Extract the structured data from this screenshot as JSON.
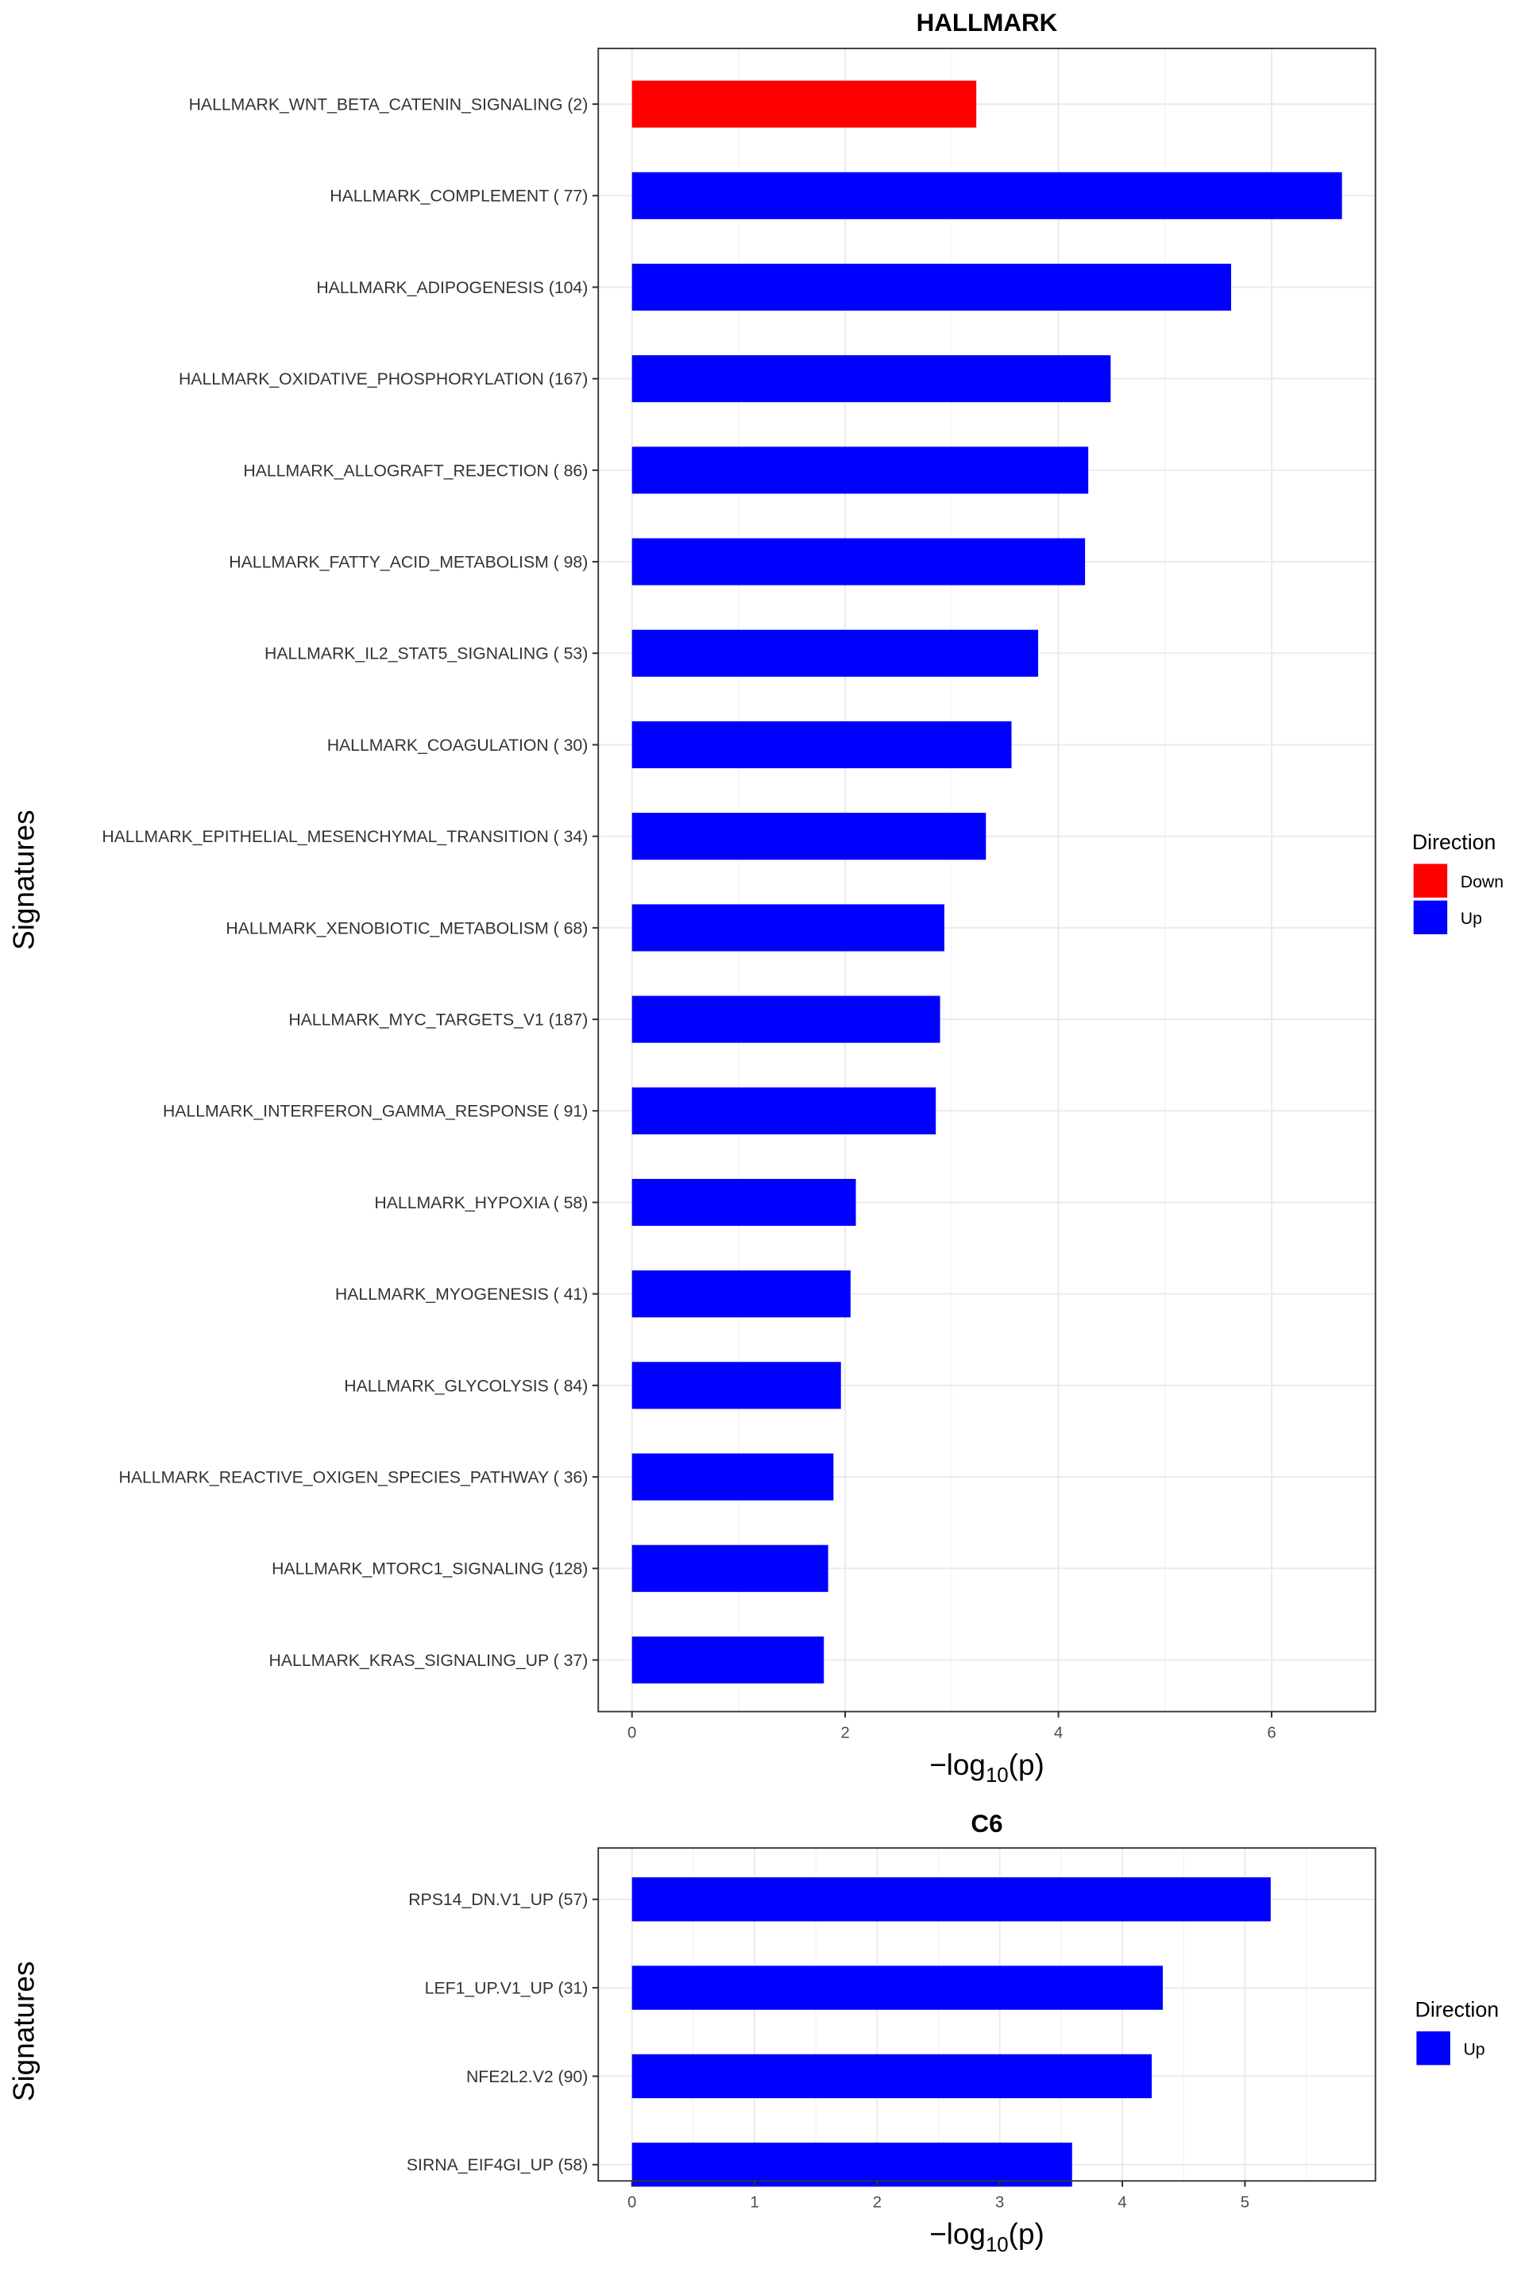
{
  "chart_data": [
    {
      "type": "bar",
      "orientation": "horizontal",
      "title": "HALLMARK",
      "xlabel": "-log10(p)",
      "xlabel_parts": {
        "prefix": "−log",
        "sub": "10",
        "suffix": "(p)"
      },
      "ylabel": "Signatures",
      "xlim": [
        0,
        7
      ],
      "xticks": [
        0,
        2,
        4,
        6
      ],
      "xtick_labels": [
        "0",
        "2",
        "4",
        "6"
      ],
      "grid": true,
      "legend": {
        "title": "Direction",
        "position": "right",
        "entries": [
          {
            "label": "Down",
            "color": "#ff0000"
          },
          {
            "label": "Up",
            "color": "#0000ff"
          }
        ]
      },
      "categories": [
        "HALLMARK_WNT_BETA_CATENIN_SIGNALING (2)",
        "HALLMARK_COMPLEMENT ( 77)",
        "HALLMARK_ADIPOGENESIS (104)",
        "HALLMARK_OXIDATIVE_PHOSPHORYLATION (167)",
        "HALLMARK_ALLOGRAFT_REJECTION ( 86)",
        "HALLMARK_FATTY_ACID_METABOLISM ( 98)",
        "HALLMARK_IL2_STAT5_SIGNALING ( 53)",
        "HALLMARK_COAGULATION ( 30)",
        "HALLMARK_EPITHELIAL_MESENCHYMAL_TRANSITION ( 34)",
        "HALLMARK_XENOBIOTIC_METABOLISM ( 68)",
        "HALLMARK_MYC_TARGETS_V1 (187)",
        "HALLMARK_INTERFERON_GAMMA_RESPONSE ( 91)",
        "HALLMARK_HYPOXIA ( 58)",
        "HALLMARK_MYOGENESIS ( 41)",
        "HALLMARK_GLYCOLYSIS ( 84)",
        "HALLMARK_REACTIVE_OXIGEN_SPECIES_PATHWAY ( 36)",
        "HALLMARK_MTORC1_SIGNALING (128)",
        "HALLMARK_KRAS_SIGNALING_UP ( 37)"
      ],
      "values": [
        3.23,
        6.66,
        5.62,
        4.49,
        4.28,
        4.25,
        3.81,
        3.56,
        3.32,
        2.93,
        2.89,
        2.85,
        2.1,
        2.05,
        1.96,
        1.89,
        1.84,
        1.8
      ],
      "direction": [
        "Down",
        "Up",
        "Up",
        "Up",
        "Up",
        "Up",
        "Up",
        "Up",
        "Up",
        "Up",
        "Up",
        "Up",
        "Up",
        "Up",
        "Up",
        "Up",
        "Up",
        "Up"
      ]
    },
    {
      "type": "bar",
      "orientation": "horizontal",
      "title": "C6",
      "xlabel": "-log10(p)",
      "xlabel_parts": {
        "prefix": "−log",
        "sub": "10",
        "suffix": "(p)"
      },
      "ylabel": "Signatures",
      "xlim": [
        0,
        5.5
      ],
      "xticks": [
        0,
        1,
        2,
        3,
        4,
        5
      ],
      "xtick_labels": [
        "0",
        "1",
        "2",
        "3",
        "4",
        "5"
      ],
      "grid": true,
      "legend": {
        "title": "Direction",
        "position": "right",
        "entries": [
          {
            "label": "Up",
            "color": "#0000ff"
          }
        ]
      },
      "categories": [
        "RPS14_DN.V1_UP (57)",
        "LEF1_UP.V1_UP (31)",
        "NFE2L2.V2 (90)",
        "SIRNA_EIF4GI_UP (58)"
      ],
      "values": [
        5.21,
        4.33,
        4.24,
        3.59
      ],
      "direction": [
        "Up",
        "Up",
        "Up",
        "Up"
      ]
    }
  ],
  "colors": {
    "Down": "#ff0000",
    "Up": "#0000ff"
  }
}
